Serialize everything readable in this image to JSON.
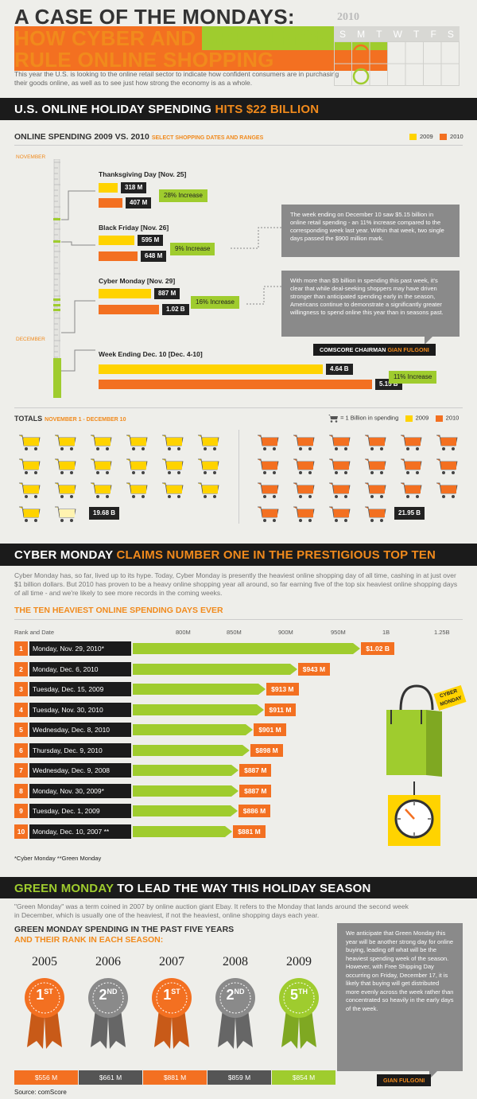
{
  "header": {
    "line1": "A CASE OF THE MONDAYS:",
    "line2a": "HOW CYBER AND ",
    "line2b": "GREEN MONDAYS",
    "line3": "RULE ONLINE SHOPPING",
    "intro": "This year the U.S. is looking to the online retail sector to indicate how confident consumers are in purchasing their goods online, as well as to see just how strong the economy is as a whole."
  },
  "calendar": {
    "year": "2010",
    "days": [
      "S",
      "M",
      "T",
      "W",
      "T",
      "F",
      "S"
    ]
  },
  "section1": {
    "title_a": "U.S. ONLINE HOLIDAY SPENDING ",
    "title_b": "HITS $22 BILLION"
  },
  "spending": {
    "title": "ONLINE SPENDING 2009 VS. 2010",
    "subtitle": "SELECT SHOPPING DATES AND RANGES",
    "leg2009": "2009",
    "leg2010": "2010",
    "november": "NOVEMBER",
    "december": "DECEMBER",
    "events": [
      {
        "name": "Thanksgiving Day [Nov. 25]",
        "v2009": "318 M",
        "v2010": "407 M",
        "increase": "28% Increase"
      },
      {
        "name": "Black Friday [Nov. 26]",
        "v2009": "595 M",
        "v2010": "648 M",
        "increase": "9% Increase"
      },
      {
        "name": "Cyber Monday [Nov. 29]",
        "v2009": "887 M",
        "v2010": "1.02 B",
        "increase": "16% Increase"
      },
      {
        "name": "Week Ending Dec. 10 [Dec. 4-10]",
        "v2009": "4.64 B",
        "v2010": "5.15 B",
        "increase": "11% Increase"
      }
    ],
    "box1": "The week ending on December 10 saw $5.15 billion in online retail spending - an 11% increase compared to the corresponding week last year. Within that week, two single days passed the $900 million mark.",
    "box2": "With more than $5 billion in spending this past week, it's clear that while deal-seeking shoppers may have driven stronger than anticipated spending early in the season, Americans continue to demonstrate a significantly greater willingness to spend online this year than in seasons past.",
    "quote_a": "COMSCORE CHAIRMAN ",
    "quote_b": "GIAN FULGONI"
  },
  "totals": {
    "title": "TOTALS",
    "range": "NOVEMBER 1 - DECEMBER 10",
    "legend_cart": "= 1 Billion in spending",
    "leg2009": "2009",
    "leg2010": "2010",
    "total2009": "19.68 B",
    "total2010": "21.95 B"
  },
  "section2": {
    "title_a": "CYBER MONDAY ",
    "title_b": "CLAIMS NUMBER ONE IN THE PRESTIGIOUS TOP TEN",
    "text": "Cyber Monday has, so far, lived up to its hype. Today, Cyber Monday is presently the heaviest online shopping day of all time, cashing in at just over $1 billion dollars. But 2010 has proven to be a heavy online shopping year all around, so far earning five of the top six heaviest online shopping days of all time - and we're likely to see more records in the coming weeks.",
    "chart_title": "THE TEN HEAVIEST ONLINE SPENDING DAYS EVER",
    "rank_label": "Rank and Date",
    "ticks": [
      "800M",
      "850M",
      "900M",
      "950M",
      "1B",
      "1.25B"
    ],
    "footnote": "*Cyber Monday  **Green Monday",
    "bag_tag": "CYBER MONDAY"
  },
  "chart_data": {
    "type": "bar",
    "title": "THE TEN HEAVIEST ONLINE SPENDING DAYS EVER",
    "categories": [
      "Monday, Nov. 29, 2010*",
      "Monday, Dec. 6, 2010",
      "Tuesday, Dec. 15, 2009",
      "Tuesday, Nov. 30, 2010",
      "Wednesday, Dec. 8, 2010",
      "Thursday, Dec. 9, 2010",
      "Wednesday, Dec. 9, 2008",
      "Monday, Nov. 30, 2009*",
      "Tuesday, Dec. 1, 2009",
      "Monday, Dec. 10, 2007 **"
    ],
    "ranks": [
      "1",
      "2",
      "3",
      "4",
      "5",
      "6",
      "7",
      "8",
      "9",
      "10"
    ],
    "values": [
      1020,
      943,
      913,
      911,
      901,
      898,
      887,
      887,
      886,
      881
    ],
    "labels": [
      "$1.02 B",
      "$943 M",
      "$913 M",
      "$911 M",
      "$901 M",
      "$898 M",
      "$887 M",
      "$887 M",
      "$886 M",
      "$881 M"
    ],
    "unit": "million USD"
  },
  "section3": {
    "title_a": "GREEN MONDAY ",
    "title_b": "TO LEAD THE WAY THIS HOLIDAY SEASON",
    "text": "\"Green Monday\" was a term coined in 2007 by online auction giant Ebay. It refers to the Monday that lands around the second week in December, which is usually one of the heaviest, if not the heaviest, online shopping days each year.",
    "sub1": "GREEN MONDAY SPENDING IN THE PAST FIVE YEARS",
    "sub2": "AND THEIR RANK IN EACH SEASON:",
    "years": [
      {
        "year": "2005",
        "rank": "1",
        "sup": "ST",
        "value": "$556 M"
      },
      {
        "year": "2006",
        "rank": "2",
        "sup": "ND",
        "value": "$661 M"
      },
      {
        "year": "2007",
        "rank": "1",
        "sup": "ST",
        "value": "$881 M"
      },
      {
        "year": "2008",
        "rank": "2",
        "sup": "ND",
        "value": "$859 M"
      },
      {
        "year": "2009",
        "rank": "5",
        "sup": "TH",
        "value": "$854 M"
      }
    ],
    "box": "We anticipate that Green Monday this year will be another strong day for online buying, leading off what will be the heaviest spending week of the season. However, with Free Shipping Day occurring on Friday, December 17, it is likely that buying will get distributed more evenly across the week rather than concentrated so heavily in the early days of the week.",
    "quote": "GIAN FULGONI"
  },
  "source": "Source: comScore"
}
